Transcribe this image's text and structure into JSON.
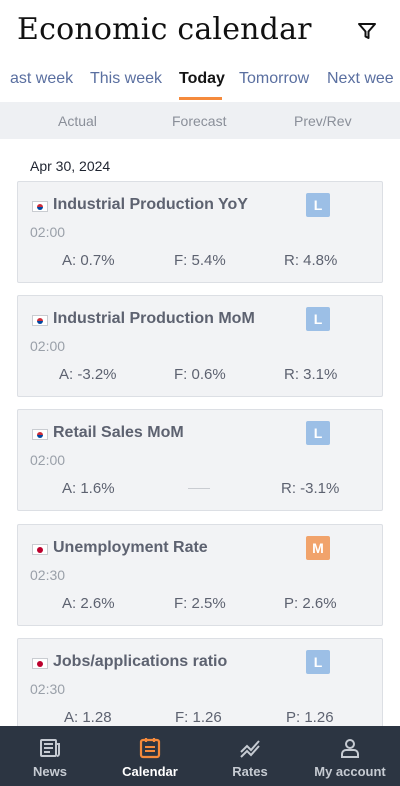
{
  "header": {
    "title": "Economic calendar",
    "filter_icon": "filter-icon"
  },
  "tabs": [
    {
      "label": "ast week",
      "active": false
    },
    {
      "label": "This week",
      "active": false
    },
    {
      "label": "Today",
      "active": true
    },
    {
      "label": "Tomorrow",
      "active": false
    },
    {
      "label": "Next wee",
      "active": false
    }
  ],
  "columns": {
    "actual": "Actual",
    "forecast": "Forecast",
    "prev": "Prev/Rev"
  },
  "date": "Apr 30, 2024",
  "events": [
    {
      "country": "KR",
      "flag_icon": "south-korea-flag-icon",
      "title": "Industrial Production YoY",
      "impact": "L",
      "time": "02:00",
      "actual": "A: 0.7%",
      "forecast": "F: 5.4%",
      "prev": "R: 4.8%"
    },
    {
      "country": "KR",
      "flag_icon": "south-korea-flag-icon",
      "title": "Industrial Production MoM",
      "impact": "L",
      "time": "02:00",
      "actual": "A: -3.2%",
      "forecast": "F: 0.6%",
      "prev": "R: 3.1%"
    },
    {
      "country": "KR",
      "flag_icon": "south-korea-flag-icon",
      "title": "Retail Sales MoM",
      "impact": "L",
      "time": "02:00",
      "actual": "A: 1.6%",
      "forecast": "",
      "prev": "R: -3.1%"
    },
    {
      "country": "JP",
      "flag_icon": "japan-flag-icon",
      "title": "Unemployment Rate",
      "impact": "M",
      "time": "02:30",
      "actual": "A: 2.6%",
      "forecast": "F: 2.5%",
      "prev": "P: 2.6%"
    },
    {
      "country": "JP",
      "flag_icon": "japan-flag-icon",
      "title": "Jobs/applications ratio",
      "impact": "L",
      "time": "02:30",
      "actual": "A: 1.28",
      "forecast": "F: 1.26",
      "prev": "P: 1.26"
    }
  ],
  "impact_colors": {
    "L": "#9cbfe6",
    "M": "#f1a36b"
  },
  "accent_color": "#f58a3c",
  "bottom_nav": [
    {
      "label": "News",
      "icon": "news-icon",
      "active": false
    },
    {
      "label": "Calendar",
      "icon": "calendar-icon",
      "active": true
    },
    {
      "label": "Rates",
      "icon": "rates-icon",
      "active": false
    },
    {
      "label": "My account",
      "icon": "account-icon",
      "active": false
    }
  ]
}
